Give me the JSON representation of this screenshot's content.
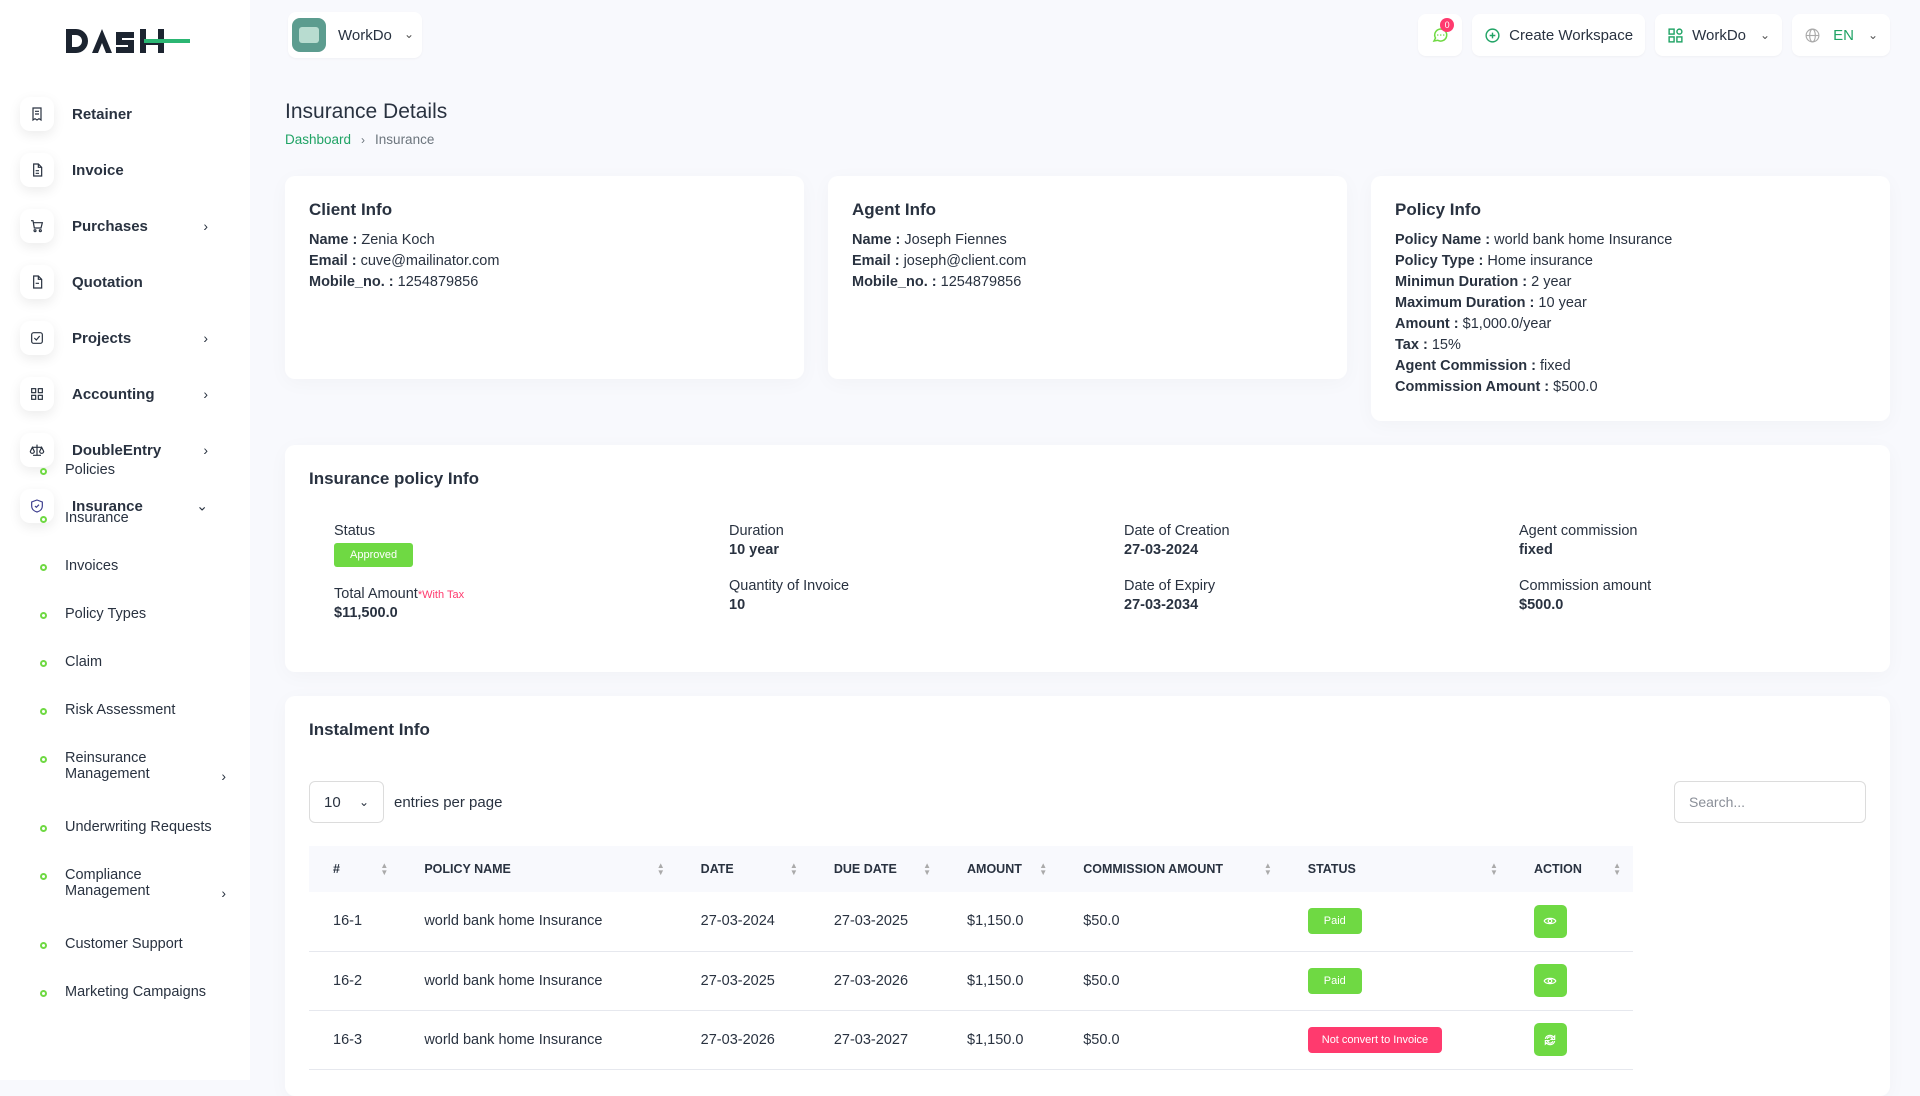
{
  "sidebar": {
    "logo_text": "DASH",
    "items": [
      {
        "label": "Retainer",
        "icon": "bill-icon",
        "has_chevron": false
      },
      {
        "label": "Invoice",
        "icon": "file-invoice-icon",
        "has_chevron": false
      },
      {
        "label": "Purchases",
        "icon": "shopping-cart-icon",
        "has_chevron": true
      },
      {
        "label": "Quotation",
        "icon": "file-quote-icon",
        "has_chevron": false
      },
      {
        "label": "Projects",
        "icon": "checkbox-icon",
        "has_chevron": true
      },
      {
        "label": "Accounting",
        "icon": "layout-grid-icon",
        "has_chevron": true
      },
      {
        "label": "DoubleEntry",
        "icon": "scale-icon",
        "has_chevron": true
      },
      {
        "label": "Insurance",
        "icon": "shield-check-icon",
        "has_chevron": true,
        "expanded": true
      }
    ],
    "submenu": [
      {
        "label": "Policies"
      },
      {
        "label": "Insurance"
      },
      {
        "label": "Invoices"
      },
      {
        "label": "Policy Types"
      },
      {
        "label": "Claim"
      },
      {
        "label": "Risk Assessment"
      },
      {
        "label": "Reinsurance",
        "label2": "Management",
        "has_chevron": true
      },
      {
        "label": "Underwriting Requests"
      },
      {
        "label": "Compliance",
        "label2": "Management",
        "has_chevron": true
      },
      {
        "label": "Customer Support"
      },
      {
        "label": "Marketing Campaigns"
      }
    ]
  },
  "topbar": {
    "workspace_name": "WorkDo",
    "notification_count": "0",
    "create_workspace_label": "Create Workspace",
    "workspace_switcher_label": "WorkDo",
    "language": "EN"
  },
  "page": {
    "title": "Insurance Details",
    "breadcrumb": {
      "home": "Dashboard",
      "current": "Insurance"
    }
  },
  "client_info": {
    "title": "Client Info",
    "name_label": "Name :",
    "name": "Zenia Koch",
    "email_label": "Email :",
    "email": "cuve@mailinator.com",
    "mobile_label": "Mobile_no. :",
    "mobile": "1254879856"
  },
  "agent_info": {
    "title": "Agent Info",
    "name_label": "Name :",
    "name": "Joseph Fiennes",
    "email_label": "Email :",
    "email": "joseph@client.com",
    "mobile_label": "Mobile_no. :",
    "mobile": "1254879856"
  },
  "policy_info": {
    "title": "Policy Info",
    "rows": [
      {
        "label": "Policy Name :",
        "value": "world bank home Insurance"
      },
      {
        "label": "Policy Type :",
        "value": "Home insurance"
      },
      {
        "label": "Minimun Duration :",
        "value": "2 year"
      },
      {
        "label": "Maximum Duration :",
        "value": "10 year"
      },
      {
        "label": "Amount :",
        "value": "$1,000.0/year"
      },
      {
        "label": "Tax :",
        "value": "15%"
      },
      {
        "label": "Agent Commission :",
        "value": "fixed"
      },
      {
        "label": "Commission Amount :",
        "value": "$500.0"
      }
    ]
  },
  "policy_summary": {
    "title": "Insurance policy Info",
    "status_label": "Status",
    "status": "Approved",
    "total_label": "Total Amount",
    "total_note": "*With Tax",
    "total": "$11,500.0",
    "duration_label": "Duration",
    "duration": "10 year",
    "qty_label": "Quantity of Invoice",
    "qty": "10",
    "created_label": "Date of Creation",
    "created": "27-03-2024",
    "expiry_label": "Date of Expiry",
    "expiry": "27-03-2034",
    "agent_comm_label": "Agent commission",
    "agent_comm": "fixed",
    "comm_amount_label": "Commission amount",
    "comm_amount": "$500.0"
  },
  "instalments": {
    "title": "Instalment Info",
    "per_page": "10",
    "per_page_label": "entries per page",
    "search_placeholder": "Search...",
    "columns": [
      "#",
      "POLICY NAME",
      "DATE",
      "DUE DATE",
      "AMOUNT",
      "COMMISSION AMOUNT",
      "STATUS",
      "ACTION"
    ],
    "rows": [
      {
        "id": "16-1",
        "policy": "world bank home Insurance",
        "date": "27-03-2024",
        "due": "27-03-2025",
        "amount": "$1,150.0",
        "commission": "$50.0",
        "status": "Paid",
        "action_icon": "eye-icon"
      },
      {
        "id": "16-2",
        "policy": "world bank home Insurance",
        "date": "27-03-2025",
        "due": "27-03-2026",
        "amount": "$1,150.0",
        "commission": "$50.0",
        "status": "Paid",
        "action_icon": "eye-icon"
      },
      {
        "id": "16-3",
        "policy": "world bank home Insurance",
        "date": "27-03-2026",
        "due": "27-03-2027",
        "amount": "$1,150.0",
        "commission": "$50.0",
        "status": "Not convert to Invoice",
        "action_icon": "convert-icon"
      }
    ]
  },
  "colors": {
    "accent": "#6fd943",
    "danger": "#ff3a6e",
    "link": "#20a365",
    "text": "#293240"
  }
}
